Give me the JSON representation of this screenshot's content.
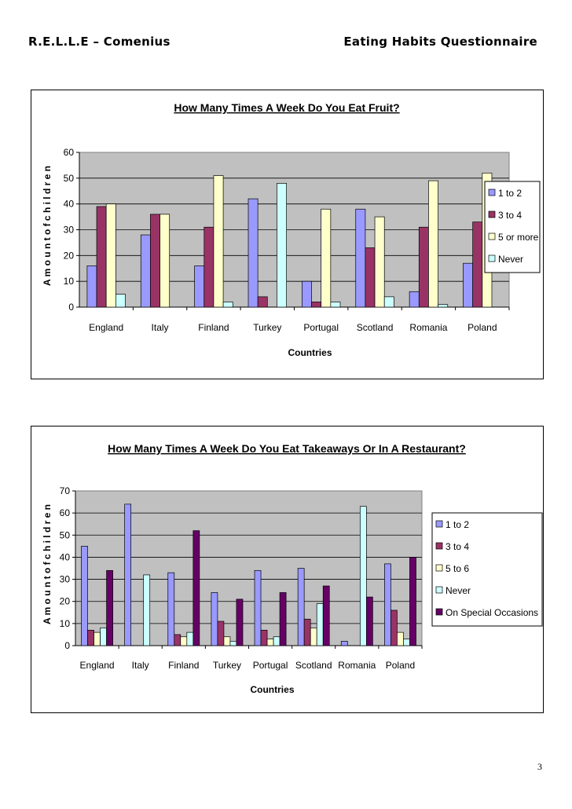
{
  "header": {
    "left": "R.E.L.L.E – Comenius",
    "right": "Eating Habits Questionnaire"
  },
  "page_number": "3",
  "colors": {
    "plot_bg": "#c0c0c0",
    "series": [
      "#9999ff",
      "#993366",
      "#ffffcc",
      "#ccffff",
      "#660066"
    ]
  },
  "chart_data": [
    {
      "type": "bar",
      "title": "How Many Times A Week Do You Eat Fruit?",
      "xlabel": "Countries",
      "ylabel": "A m o u n t  o f  c h i l d r e n",
      "ylim": [
        0,
        60
      ],
      "yticks": [
        0,
        10,
        20,
        30,
        40,
        50,
        60
      ],
      "grid": true,
      "legend_position": "right",
      "categories": [
        "England",
        "Italy",
        "Finland",
        "Turkey",
        "Portugal",
        "Scotland",
        "Romania",
        "Poland"
      ],
      "series": [
        {
          "name": "1 to 2",
          "values": [
            16,
            28,
            16,
            42,
            10,
            38,
            6,
            17
          ]
        },
        {
          "name": "3 to 4",
          "values": [
            39,
            36,
            31,
            4,
            2,
            23,
            31,
            33
          ]
        },
        {
          "name": "5 or more",
          "values": [
            40,
            36,
            51,
            0,
            38,
            35,
            49,
            52
          ]
        },
        {
          "name": "Never",
          "values": [
            5,
            0,
            2,
            48,
            2,
            4,
            1,
            0
          ]
        }
      ]
    },
    {
      "type": "bar",
      "title": "How Many Times A Week Do You Eat Takeaways Or In A Restaurant?",
      "xlabel": "Countries",
      "ylabel": "A m o u n t  o f  c h i l d r e n",
      "ylim": [
        0,
        70
      ],
      "yticks": [
        0,
        10,
        20,
        30,
        40,
        50,
        60,
        70
      ],
      "grid": true,
      "legend_position": "right",
      "categories": [
        "England",
        "Italy",
        "Finland",
        "Turkey",
        "Portugal",
        "Scotland",
        "Romania",
        "Poland"
      ],
      "series": [
        {
          "name": "1 to 2",
          "values": [
            45,
            64,
            33,
            24,
            34,
            35,
            2,
            37
          ]
        },
        {
          "name": "3 to 4",
          "values": [
            7,
            0,
            5,
            11,
            7,
            12,
            0,
            16
          ]
        },
        {
          "name": "5 to 6",
          "values": [
            6,
            0,
            4,
            4,
            3,
            8,
            0,
            6
          ]
        },
        {
          "name": "Never",
          "values": [
            8,
            32,
            6,
            2,
            4,
            19,
            63,
            3
          ]
        },
        {
          "name": "On Special Occasions",
          "values": [
            34,
            0,
            52,
            21,
            24,
            27,
            22,
            40
          ]
        }
      ]
    }
  ]
}
